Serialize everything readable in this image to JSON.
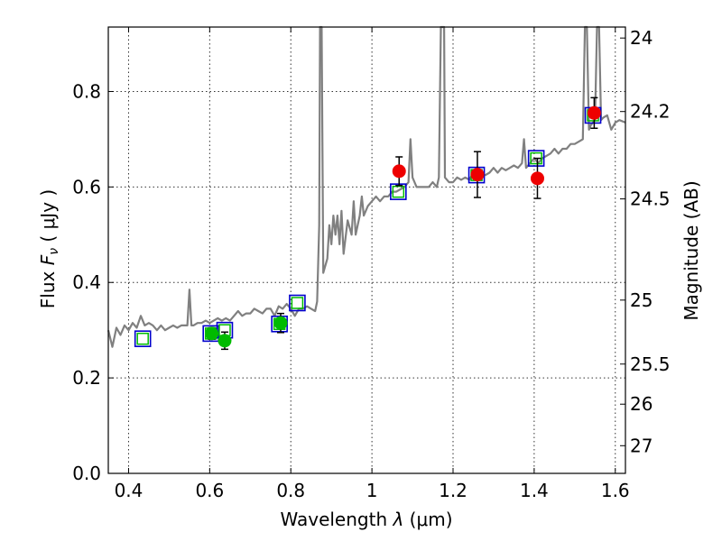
{
  "chart_data": {
    "type": "scatter",
    "title": "",
    "xlabel_prefix": "Wavelength  ",
    "xlabel_symbol": "λ",
    "xlabel_unit": " (μm)",
    "ylabel_prefix": "Flux  ",
    "ylabel_symbol": "F",
    "ylabel_sub": "ν",
    "ylabel_unit": "  ( μJy )",
    "y2label": "Magnitude (AB)",
    "xlim": [
      0.35,
      1.625
    ],
    "ylim": [
      0.0,
      0.935
    ],
    "grid": true,
    "x_ticks": [
      0.4,
      0.6,
      0.8,
      1.0,
      1.2,
      1.4,
      1.6
    ],
    "x_tick_labels": [
      "0.4",
      "0.6",
      "0.8",
      "1",
      "1.2",
      "1.4",
      "1.6"
    ],
    "y_ticks": [
      0.0,
      0.2,
      0.4,
      0.6,
      0.8
    ],
    "y_tick_labels": [
      "0.0",
      "0.2",
      "0.4",
      "0.6",
      "0.8"
    ],
    "y2_ticks": [
      {
        "label": "24",
        "flux": 0.912
      },
      {
        "label": "24.2",
        "flux": 0.758
      },
      {
        "label": "24.5",
        "flux": 0.575
      },
      {
        "label": "25",
        "flux": 0.363
      },
      {
        "label": "25.5",
        "flux": 0.229
      },
      {
        "label": "26",
        "flux": 0.145
      },
      {
        "label": "27",
        "flux": 0.058
      }
    ],
    "colors": {
      "spectrum": "#808080",
      "model": "#0000cc",
      "green": "#00bb00",
      "red": "#ee0000",
      "error": "#000000"
    },
    "series": [
      {
        "name": "model_spectrum",
        "kind": "line",
        "points": [
          [
            0.35,
            0.3
          ],
          [
            0.36,
            0.265
          ],
          [
            0.37,
            0.305
          ],
          [
            0.38,
            0.29
          ],
          [
            0.39,
            0.31
          ],
          [
            0.4,
            0.3
          ],
          [
            0.41,
            0.315
          ],
          [
            0.42,
            0.305
          ],
          [
            0.43,
            0.33
          ],
          [
            0.44,
            0.31
          ],
          [
            0.45,
            0.315
          ],
          [
            0.46,
            0.31
          ],
          [
            0.47,
            0.3
          ],
          [
            0.48,
            0.31
          ],
          [
            0.49,
            0.3
          ],
          [
            0.5,
            0.305
          ],
          [
            0.51,
            0.31
          ],
          [
            0.52,
            0.305
          ],
          [
            0.53,
            0.31
          ],
          [
            0.54,
            0.31
          ],
          [
            0.545,
            0.31
          ],
          [
            0.55,
            0.385
          ],
          [
            0.555,
            0.31
          ],
          [
            0.56,
            0.31
          ],
          [
            0.57,
            0.315
          ],
          [
            0.58,
            0.315
          ],
          [
            0.59,
            0.32
          ],
          [
            0.6,
            0.315
          ],
          [
            0.61,
            0.32
          ],
          [
            0.62,
            0.325
          ],
          [
            0.63,
            0.32
          ],
          [
            0.64,
            0.325
          ],
          [
            0.65,
            0.32
          ],
          [
            0.66,
            0.33
          ],
          [
            0.67,
            0.34
          ],
          [
            0.68,
            0.33
          ],
          [
            0.69,
            0.335
          ],
          [
            0.7,
            0.335
          ],
          [
            0.71,
            0.345
          ],
          [
            0.72,
            0.34
          ],
          [
            0.73,
            0.335
          ],
          [
            0.74,
            0.345
          ],
          [
            0.75,
            0.345
          ],
          [
            0.76,
            0.33
          ],
          [
            0.77,
            0.35
          ],
          [
            0.78,
            0.345
          ],
          [
            0.79,
            0.355
          ],
          [
            0.8,
            0.345
          ],
          [
            0.81,
            0.33
          ],
          [
            0.82,
            0.345
          ],
          [
            0.83,
            0.345
          ],
          [
            0.84,
            0.35
          ],
          [
            0.85,
            0.345
          ],
          [
            0.86,
            0.34
          ],
          [
            0.865,
            0.36
          ],
          [
            0.87,
            0.52
          ],
          [
            0.872,
            0.935
          ],
          [
            0.876,
            0.935
          ],
          [
            0.88,
            0.42
          ],
          [
            0.89,
            0.45
          ],
          [
            0.895,
            0.52
          ],
          [
            0.9,
            0.48
          ],
          [
            0.905,
            0.54
          ],
          [
            0.91,
            0.5
          ],
          [
            0.915,
            0.54
          ],
          [
            0.92,
            0.48
          ],
          [
            0.925,
            0.55
          ],
          [
            0.93,
            0.46
          ],
          [
            0.94,
            0.53
          ],
          [
            0.95,
            0.5
          ],
          [
            0.955,
            0.57
          ],
          [
            0.96,
            0.5
          ],
          [
            0.97,
            0.54
          ],
          [
            0.975,
            0.58
          ],
          [
            0.98,
            0.54
          ],
          [
            0.99,
            0.56
          ],
          [
            1.0,
            0.57
          ],
          [
            1.01,
            0.58
          ],
          [
            1.02,
            0.57
          ],
          [
            1.03,
            0.58
          ],
          [
            1.04,
            0.58
          ],
          [
            1.05,
            0.59
          ],
          [
            1.06,
            0.59
          ],
          [
            1.07,
            0.595
          ],
          [
            1.08,
            0.6
          ],
          [
            1.09,
            0.61
          ],
          [
            1.095,
            0.7
          ],
          [
            1.1,
            0.62
          ],
          [
            1.11,
            0.6
          ],
          [
            1.12,
            0.6
          ],
          [
            1.13,
            0.6
          ],
          [
            1.14,
            0.6
          ],
          [
            1.15,
            0.61
          ],
          [
            1.16,
            0.6
          ],
          [
            1.165,
            0.62
          ],
          [
            1.17,
            0.935
          ],
          [
            1.178,
            0.935
          ],
          [
            1.18,
            0.62
          ],
          [
            1.19,
            0.61
          ],
          [
            1.2,
            0.61
          ],
          [
            1.21,
            0.62
          ],
          [
            1.22,
            0.615
          ],
          [
            1.23,
            0.62
          ],
          [
            1.24,
            0.615
          ],
          [
            1.25,
            0.63
          ],
          [
            1.26,
            0.62
          ],
          [
            1.27,
            0.625
          ],
          [
            1.28,
            0.625
          ],
          [
            1.29,
            0.63
          ],
          [
            1.3,
            0.64
          ],
          [
            1.31,
            0.63
          ],
          [
            1.32,
            0.64
          ],
          [
            1.33,
            0.635
          ],
          [
            1.34,
            0.64
          ],
          [
            1.35,
            0.645
          ],
          [
            1.36,
            0.64
          ],
          [
            1.37,
            0.65
          ],
          [
            1.375,
            0.7
          ],
          [
            1.38,
            0.64
          ],
          [
            1.39,
            0.65
          ],
          [
            1.4,
            0.66
          ],
          [
            1.41,
            0.65
          ],
          [
            1.42,
            0.66
          ],
          [
            1.43,
            0.665
          ],
          [
            1.44,
            0.67
          ],
          [
            1.45,
            0.68
          ],
          [
            1.46,
            0.67
          ],
          [
            1.47,
            0.68
          ],
          [
            1.48,
            0.68
          ],
          [
            1.49,
            0.69
          ],
          [
            1.5,
            0.69
          ],
          [
            1.51,
            0.695
          ],
          [
            1.52,
            0.7
          ],
          [
            1.525,
            0.935
          ],
          [
            1.53,
            0.935
          ],
          [
            1.535,
            0.72
          ],
          [
            1.54,
            0.73
          ],
          [
            1.55,
            0.74
          ],
          [
            1.555,
            0.935
          ],
          [
            1.56,
            0.935
          ],
          [
            1.565,
            0.74
          ],
          [
            1.57,
            0.745
          ],
          [
            1.58,
            0.75
          ],
          [
            1.59,
            0.72
          ],
          [
            1.6,
            0.735
          ],
          [
            1.61,
            0.74
          ],
          [
            1.625,
            0.735
          ]
        ]
      },
      {
        "name": "model_photometry",
        "kind": "square",
        "points": [
          [
            0.435,
            0.282
          ],
          [
            0.603,
            0.293
          ],
          [
            0.637,
            0.3
          ],
          [
            0.772,
            0.313
          ],
          [
            0.816,
            0.357
          ],
          [
            1.065,
            0.59
          ],
          [
            1.258,
            0.625
          ],
          [
            1.405,
            0.66
          ],
          [
            1.545,
            0.75
          ]
        ]
      },
      {
        "name": "green_photometry",
        "kind": "circle",
        "points": [
          [
            0.605,
            0.293
          ],
          [
            0.637,
            0.278
          ],
          [
            0.775,
            0.315
          ]
        ],
        "errors": [
          0.012,
          0.018,
          0.02
        ]
      },
      {
        "name": "red_photometry",
        "kind": "circle",
        "points": [
          [
            1.067,
            0.633
          ],
          [
            1.26,
            0.626
          ],
          [
            1.408,
            0.618
          ],
          [
            1.548,
            0.755
          ]
        ],
        "errors": [
          0.03,
          0.048,
          0.042,
          0.032
        ]
      }
    ]
  }
}
